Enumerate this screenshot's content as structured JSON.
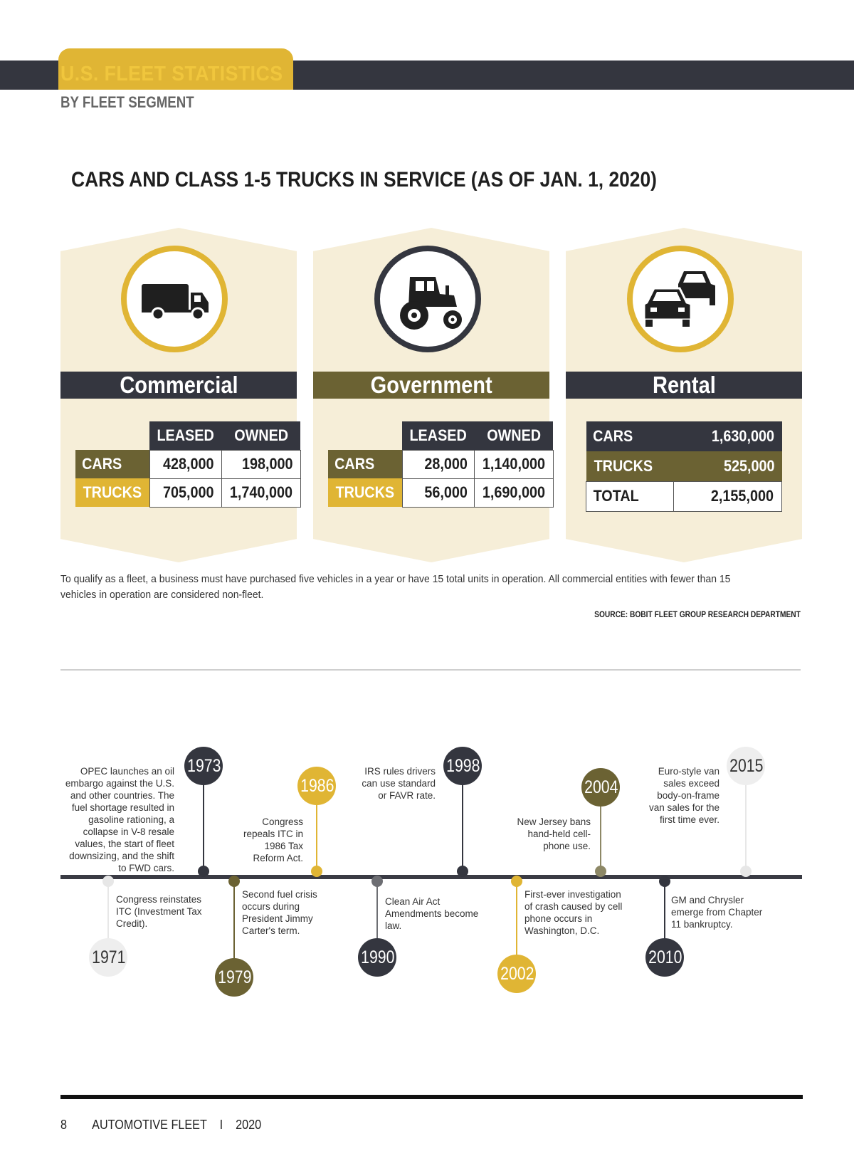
{
  "header": {
    "title": "U.S. FLEET STATISTICS",
    "subtitle": "BY FLEET SEGMENT"
  },
  "main_title": "CARS AND CLASS 1-5 TRUCKS IN SERVICE (AS OF JAN. 1, 2020)",
  "segments": {
    "commercial": {
      "name": "Commercial",
      "icon": "truck-icon",
      "col_leased": "LEASED",
      "col_owned": "OWNED",
      "row_cars": "CARS",
      "row_trucks": "TRUCKS",
      "cars_leased": "428,000",
      "cars_owned": "198,000",
      "trucks_leased": "705,000",
      "trucks_owned": "1,740,000"
    },
    "government": {
      "name": "Government",
      "icon": "tractor-icon",
      "col_leased": "LEASED",
      "col_owned": "OWNED",
      "row_cars": "CARS",
      "row_trucks": "TRUCKS",
      "cars_leased": "28,000",
      "cars_owned": "1,140,000",
      "trucks_leased": "56,000",
      "trucks_owned": "1,690,000"
    },
    "rental": {
      "name": "Rental",
      "icon": "cars-icon",
      "row_cars": "CARS",
      "row_trucks": "TRUCKS",
      "row_total": "TOTAL",
      "cars": "1,630,000",
      "trucks": "525,000",
      "total": "2,155,000"
    }
  },
  "note": "To qualify as a fleet, a business must have purchased five vehicles in a year or have 15 total units in operation. All commercial entities with fewer than 15 vehicles in operation are considered non-fleet.",
  "source": "SOURCE: BOBIT FLEET GROUP RESEARCH DEPARTMENT",
  "timeline": {
    "e1971": {
      "year": "1971",
      "text": "Congress reinstates ITC (Investment Tax Credit)."
    },
    "e1973": {
      "year": "1973",
      "text": "OPEC launches an oil embargo against the U.S. and other countries. The fuel shortage resulted in gasoline rationing, a collapse in V-8 resale values, the start of fleet downsizing, and the shift to FWD cars."
    },
    "e1979": {
      "year": "1979",
      "text": "Second fuel crisis occurs during President Jimmy Carter's term."
    },
    "e1986": {
      "year": "1986",
      "text": "Congress repeals ITC in 1986 Tax Reform Act."
    },
    "e1990": {
      "year": "1990",
      "text": "Clean Air Act Amendments become law."
    },
    "e1998": {
      "year": "1998",
      "text": "IRS rules drivers can use standard or FAVR rate."
    },
    "e2002": {
      "year": "2002",
      "text": "First-ever investigation of crash caused by cell phone occurs in Washington, D.C."
    },
    "e2004": {
      "year": "2004",
      "text": "New Jersey bans hand-held cell-phone use."
    },
    "e2010": {
      "year": "2010",
      "text": "GM and Chrysler emerge from Chapter 11 bankruptcy."
    },
    "e2015": {
      "year": "2015",
      "text": "Euro-style van sales exceed body-on-frame van sales for the first time ever."
    }
  },
  "footer": {
    "page_number": "8",
    "publication": "AUTOMOTIVE FLEET",
    "separator": "I",
    "year": "2020"
  }
}
